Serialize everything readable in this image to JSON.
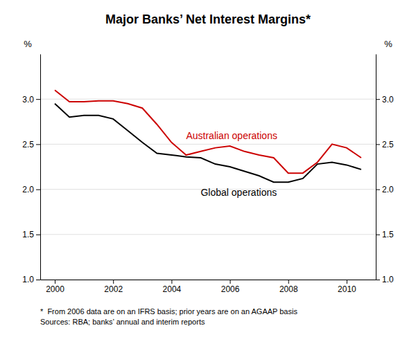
{
  "chart_data": {
    "type": "line",
    "title": "Major Banks’ Net Interest Margins*",
    "footnote": [
      "*  From 2006 data are on an IFRS basis; prior years are on an AGAAP basis",
      "Sources: RBA; banks’ annual and interim reports"
    ],
    "ylabel": "%",
    "y2label": "%",
    "x": [
      2000.0,
      2000.5,
      2001.0,
      2001.5,
      2002.0,
      2002.5,
      2003.0,
      2003.5,
      2004.0,
      2004.5,
      2005.0,
      2005.5,
      2006.0,
      2006.5,
      2007.0,
      2007.5,
      2008.0,
      2008.5,
      2009.0,
      2009.5,
      2010.0,
      2010.5
    ],
    "series": [
      {
        "name": "Australian operations",
        "color": "#cc0000",
        "values": [
          3.1,
          2.97,
          2.97,
          2.98,
          2.98,
          2.95,
          2.9,
          2.72,
          2.52,
          2.38,
          2.42,
          2.46,
          2.48,
          2.42,
          2.38,
          2.35,
          2.18,
          2.18,
          2.3,
          2.5,
          2.46,
          2.35
        ]
      },
      {
        "name": "Global operations",
        "color": "#000000",
        "values": [
          2.95,
          2.8,
          2.82,
          2.82,
          2.78,
          2.65,
          2.52,
          2.4,
          2.38,
          2.36,
          2.35,
          2.28,
          2.25,
          2.2,
          2.15,
          2.08,
          2.08,
          2.12,
          2.28,
          2.3,
          2.27,
          2.22
        ]
      }
    ],
    "xlim": [
      1999.5,
      2011.0
    ],
    "xticks": [
      2000,
      2002,
      2004,
      2006,
      2008,
      2010
    ],
    "ylim": [
      1.0,
      3.5
    ],
    "yticks": [
      {
        "value": 1.0,
        "label": "1.0"
      },
      {
        "value": 1.5,
        "label": "1.5"
      },
      {
        "value": 2.0,
        "label": "2.0"
      },
      {
        "value": 2.5,
        "label": "2.5"
      },
      {
        "value": 3.0,
        "label": "3.0"
      }
    ],
    "y2lim": [
      1.0,
      3.5
    ],
    "y2ticks": [
      {
        "value": 1.0,
        "label": "1.0"
      },
      {
        "value": 1.5,
        "label": "1.5"
      },
      {
        "value": 2.0,
        "label": "2.0"
      },
      {
        "value": 2.5,
        "label": "2.5"
      },
      {
        "value": 3.0,
        "label": "3.0"
      }
    ],
    "grid": true
  }
}
